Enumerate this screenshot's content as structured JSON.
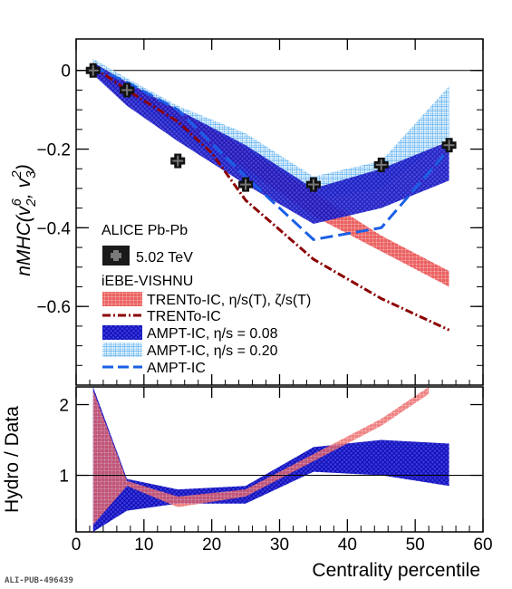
{
  "credit": "ALI-PUB-496439",
  "chart_data": [
    {
      "panel": "top",
      "type": "line",
      "ylabel_parts": [
        "nMHC(v",
        "2",
        "6",
        ", v",
        "3",
        "2",
        ")"
      ],
      "xlim": [
        0,
        60
      ],
      "ylim": [
        -0.8,
        0.08
      ],
      "yticks": [
        0,
        -0.2,
        -0.4,
        -0.6
      ],
      "ytick_labels": [
        "0",
        "−0.2",
        "−0.4",
        "−0.6"
      ],
      "legend": {
        "header1": "ALICE Pb-Pb",
        "header2": "iEBE-VISHNU",
        "data_label": "5.02 TeV",
        "trento_band": "TRENTo-IC, η/s(T), ζ/s(T)",
        "trento_line": "TRENTo-IC",
        "ampt008_band": "AMPT-IC, η/s = 0.08",
        "ampt020_band": "AMPT-IC, η/s = 0.20",
        "ampt_line": "AMPT-IC"
      },
      "data_points": {
        "x": [
          2.5,
          7.5,
          15,
          25,
          35,
          45,
          55
        ],
        "y": [
          0.0,
          -0.05,
          -0.23,
          -0.29,
          -0.29,
          -0.24,
          -0.19
        ]
      },
      "trento_band": {
        "x": [
          2.5,
          7.5,
          15,
          25,
          35,
          45,
          55
        ],
        "lo": [
          -0.01,
          -0.06,
          -0.14,
          -0.25,
          -0.37,
          -0.46,
          -0.55
        ],
        "hi": [
          0.02,
          -0.03,
          -0.1,
          -0.2,
          -0.31,
          -0.42,
          -0.51
        ],
        "color": "#ee3b3b"
      },
      "trento_line": {
        "x": [
          2.5,
          7.5,
          15,
          20,
          25,
          35,
          45,
          55
        ],
        "y": [
          0.01,
          -0.05,
          -0.13,
          -0.21,
          -0.33,
          -0.48,
          -0.58,
          -0.66
        ],
        "color": "#8b0000"
      },
      "ampt008_band": {
        "x": [
          2.5,
          7.5,
          15,
          25,
          35,
          45,
          55
        ],
        "lo": [
          -0.01,
          -0.09,
          -0.18,
          -0.29,
          -0.39,
          -0.35,
          -0.28
        ],
        "hi": [
          0.02,
          -0.03,
          -0.1,
          -0.19,
          -0.3,
          -0.25,
          -0.18
        ],
        "color": "#1a1ad6"
      },
      "ampt020_band": {
        "x": [
          2.5,
          7.5,
          15,
          25,
          35,
          45,
          55
        ],
        "lo": [
          -0.01,
          -0.07,
          -0.16,
          -0.27,
          -0.33,
          -0.3,
          -0.17
        ],
        "hi": [
          0.03,
          -0.02,
          -0.09,
          -0.16,
          -0.27,
          -0.23,
          -0.04
        ],
        "color": "#5aaaf0"
      },
      "ampt_line": {
        "x": [
          2.5,
          7.5,
          15,
          25,
          35,
          45,
          55
        ],
        "y": [
          0.01,
          -0.03,
          -0.1,
          -0.27,
          -0.43,
          -0.4,
          -0.2
        ],
        "color": "#1a5fe6"
      }
    },
    {
      "panel": "bottom",
      "type": "line",
      "xlabel": "Centrality percentile",
      "ylabel": "Hydro / Data",
      "xlim": [
        0,
        60
      ],
      "ylim": [
        0.2,
        2.25
      ],
      "yticks": [
        1,
        2
      ],
      "xticks": [
        0,
        10,
        20,
        30,
        40,
        50,
        60
      ],
      "reference_line": 1,
      "trento_ratio_band": {
        "x": [
          2.5,
          7.5,
          15,
          25,
          35,
          45,
          52
        ],
        "lo": [
          0.3,
          0.85,
          0.55,
          0.7,
          1.2,
          1.7,
          2.15
        ],
        "hi": [
          2.2,
          0.92,
          0.7,
          0.8,
          1.3,
          1.8,
          2.25
        ]
      },
      "ampt_ratio_band": {
        "x": [
          2.5,
          7.5,
          15,
          25,
          35,
          45,
          55
        ],
        "lo": [
          0.2,
          0.5,
          0.6,
          0.6,
          1.05,
          1.0,
          0.85
        ],
        "hi": [
          2.25,
          0.95,
          0.8,
          0.85,
          1.4,
          1.5,
          1.45
        ]
      }
    }
  ]
}
